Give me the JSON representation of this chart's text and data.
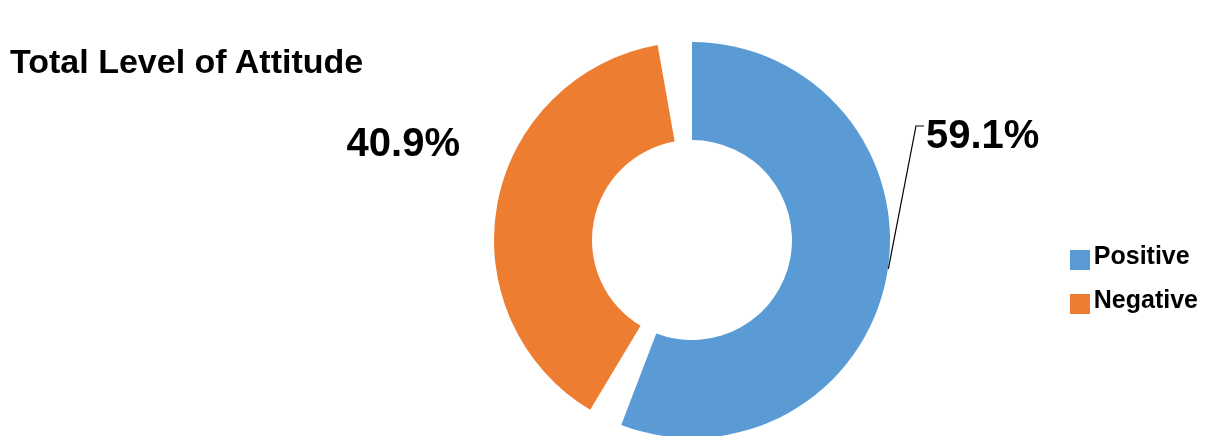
{
  "chart_data": {
    "type": "donut",
    "title": "Total Level of Attitude",
    "categories": [
      "Positive",
      "Negative"
    ],
    "values": [
      59.1,
      40.9
    ],
    "value_labels": [
      "59.1%",
      "40.9%"
    ],
    "colors": [
      "#5b9bd5",
      "#ed7d31"
    ],
    "legend": "right"
  }
}
